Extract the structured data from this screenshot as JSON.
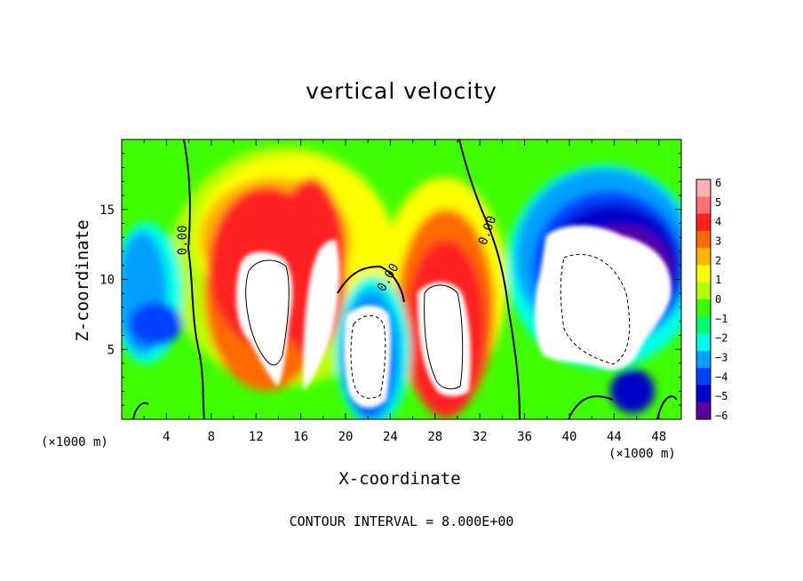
{
  "chart_data": {
    "type": "heatmap",
    "title": "vertical velocity",
    "xlabel": "X-coordinate",
    "ylabel": "Z-coordinate",
    "x_units": "(×1000 m)",
    "z_units": "(×1000 m)",
    "xlim": [
      0,
      50
    ],
    "ylim": [
      0,
      20
    ],
    "x_ticks": [
      4,
      8,
      12,
      16,
      20,
      24,
      28,
      32,
      36,
      40,
      44,
      48
    ],
    "y_ticks": [
      5,
      10,
      15
    ],
    "contour_interval_label": "CONTOUR INTERVAL = 8.000E+00",
    "zero_contour_label": "0.00",
    "colorbar": {
      "ticks": [
        "6",
        "5",
        "4",
        "3",
        "2",
        "1",
        "0",
        "−1",
        "−2",
        "−3",
        "−4",
        "−5",
        "−6"
      ],
      "range": [
        -6,
        6
      ],
      "colors": [
        "#ffb0b0",
        "#ff7070",
        "#ff2020",
        "#ff6a00",
        "#ffb400",
        "#ffff00",
        "#b4ff00",
        "#38ff00",
        "#00ff6e",
        "#00ffe6",
        "#00a0ff",
        "#0040ff",
        "#0000c8",
        "#5a00a0"
      ]
    },
    "features": [
      {
        "name": "updraft-1",
        "x": 13.5,
        "z": 7.5,
        "sign": "positive",
        "peak": "> 6"
      },
      {
        "name": "updraft-2",
        "x": 17.0,
        "z": 8.0,
        "sign": "positive",
        "peak": "> 6"
      },
      {
        "name": "downdraft-1",
        "x": 22.0,
        "z": 4.5,
        "sign": "negative",
        "peak": "< -6"
      },
      {
        "name": "updraft-3",
        "x": 29.0,
        "z": 7.5,
        "sign": "positive",
        "peak": "> 6"
      },
      {
        "name": "downdraft-2",
        "x": 43.0,
        "z": 8.0,
        "sign": "negative",
        "peak": "< -6"
      }
    ]
  }
}
